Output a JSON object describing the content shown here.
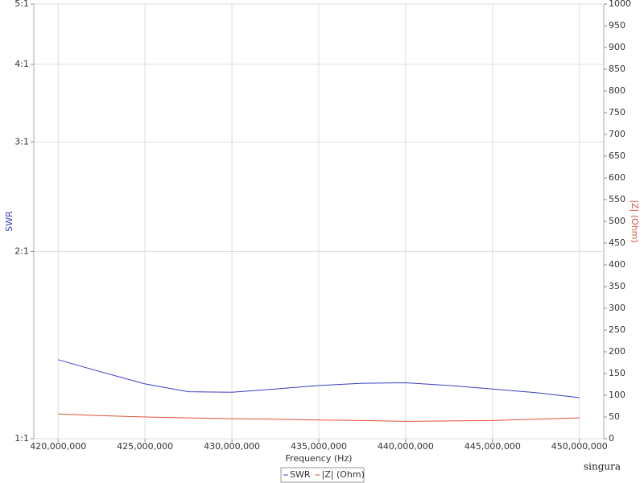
{
  "chart_data": {
    "type": "line",
    "x_label": "Frequency (Hz)",
    "y_label": "SWR",
    "y2_label": "|Z| (Ohm)",
    "watermark": "singura",
    "x": [
      420000000,
      422500000,
      425000000,
      427500000,
      430000000,
      432500000,
      435000000,
      437500000,
      440000000,
      442500000,
      445000000,
      447500000,
      450000000
    ],
    "series": [
      {
        "name": "SWR",
        "color": "#3c3cc8",
        "axis": "y",
        "values": [
          1.34,
          1.28,
          1.225,
          1.19,
          1.188,
          1.202,
          1.218,
          1.228,
          1.23,
          1.218,
          1.202,
          1.186,
          1.164
        ]
      },
      {
        "name": "|Z| (Ohm)",
        "color": "#e0503c",
        "axis": "y2",
        "values": [
          57,
          53,
          50,
          48,
          46,
          45,
          43,
          42,
          40,
          41,
          42,
          45,
          48
        ]
      }
    ],
    "xlim": [
      418600000,
      451400000
    ],
    "xticks": [
      {
        "value": 420000000,
        "label": "420,000,000"
      },
      {
        "value": 425000000,
        "label": "425,000,000"
      },
      {
        "value": 430000000,
        "label": "430,000,000"
      },
      {
        "value": 435000000,
        "label": "435,000,000"
      },
      {
        "value": 440000000,
        "label": "440,000,000"
      },
      {
        "value": 445000000,
        "label": "445,000,000"
      },
      {
        "value": 450000000,
        "label": "450,000,000"
      }
    ],
    "ylim": [
      1,
      5
    ],
    "ylog": true,
    "yticks": [
      {
        "value": 1,
        "label": "1:1"
      },
      {
        "value": 2,
        "label": "2:1"
      },
      {
        "value": 3,
        "label": "3:1"
      },
      {
        "value": 4,
        "label": "4:1"
      },
      {
        "value": 5,
        "label": "5:1"
      }
    ],
    "y2lim": [
      0,
      1000
    ],
    "y2ticks": [
      0,
      50,
      100,
      150,
      200,
      250,
      300,
      350,
      400,
      450,
      500,
      550,
      600,
      650,
      700,
      750,
      800,
      850,
      900,
      950,
      1000
    ],
    "grid": true
  }
}
